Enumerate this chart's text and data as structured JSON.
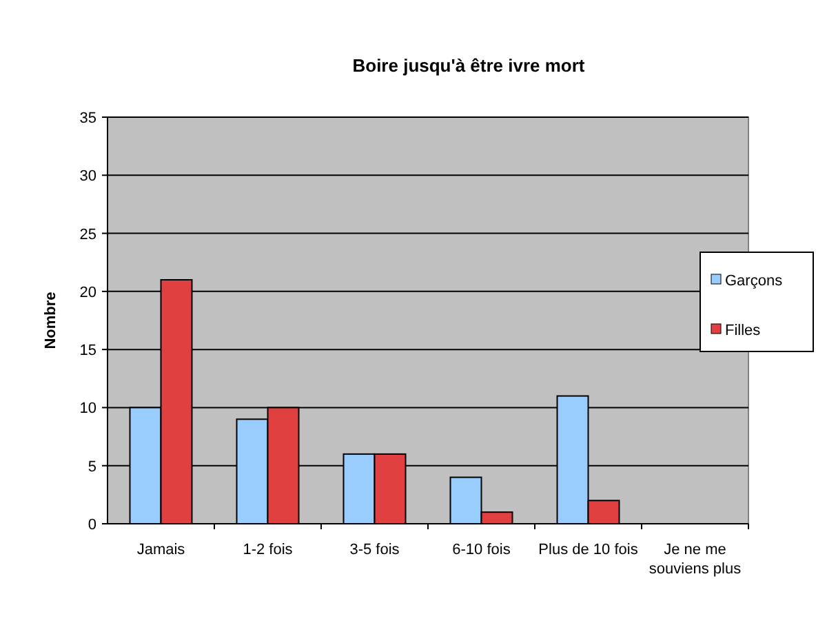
{
  "chart_data": {
    "type": "bar",
    "title": "Boire jusqu'à être ivre mort",
    "ylabel": "Nombre",
    "categories": [
      "Jamais",
      "1-2 fois",
      "3-5 fois",
      "6-10 fois",
      "Plus de 10 fois",
      "Je ne me souviens plus"
    ],
    "series": [
      {
        "name": "Garçons",
        "color": "#99ccff",
        "values": [
          10,
          9,
          6,
          4,
          11,
          0
        ]
      },
      {
        "name": "Filles",
        "color": "#e04040",
        "values": [
          21,
          10,
          6,
          1,
          2,
          0
        ]
      }
    ],
    "ylim": [
      0,
      35
    ],
    "yticks": [
      0,
      5,
      10,
      15,
      20,
      25,
      30,
      35
    ],
    "grid": "y",
    "legend": "right"
  }
}
